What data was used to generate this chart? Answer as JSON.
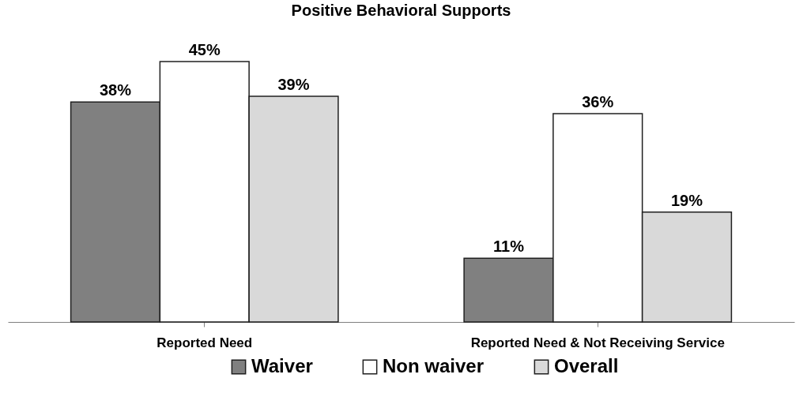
{
  "chart_data": {
    "type": "bar",
    "title": "Positive Behavioral Supports",
    "categories": [
      "Reported Need",
      "Reported Need & Not Receiving Service"
    ],
    "legend": "bottom",
    "grid": false,
    "series": [
      {
        "name": "Waiver",
        "color": "#808080",
        "values": [
          38,
          11
        ],
        "value_labels": [
          "38%",
          "11%"
        ]
      },
      {
        "name": "Non waiver",
        "color": "#ffffff",
        "values": [
          45,
          36
        ],
        "value_labels": [
          "45%",
          "36%"
        ]
      },
      {
        "name": "Overall",
        "color": "#d9d9d9",
        "values": [
          39,
          19
        ],
        "value_labels": [
          "39%",
          "19%"
        ]
      }
    ]
  }
}
